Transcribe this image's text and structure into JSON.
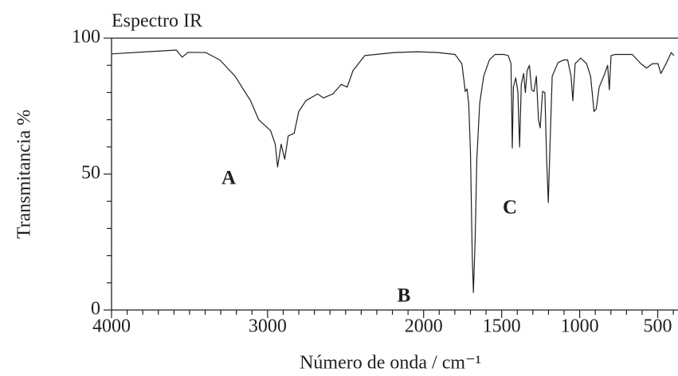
{
  "chart_data": {
    "type": "line",
    "title": "Espectro IR",
    "xlabel": "Número de onda / cm⁻¹",
    "ylabel": "Transmitancia %",
    "annotations": [
      "A",
      "B",
      "C"
    ],
    "xlim": [
      4000,
      370
    ],
    "ylim": [
      0,
      100
    ],
    "xticks": [
      4000,
      3000,
      2000,
      1500,
      1000,
      500
    ],
    "xminorticks": [
      3900,
      3800,
      3700,
      3600,
      3500,
      3400,
      3300,
      3200,
      3100,
      2900,
      2800,
      2700,
      2600,
      2500,
      2400,
      2300,
      2200,
      2100,
      1900,
      1800,
      1700,
      1600,
      1400,
      1300,
      1200,
      1100,
      900,
      800,
      700,
      600,
      400
    ],
    "yticks": [
      0,
      50,
      100
    ],
    "yminorticks": [
      10,
      20,
      30,
      40,
      60,
      70,
      80,
      90
    ],
    "series": [
      {
        "color": "#231f20",
        "x": [
          4000,
          3774,
          3585,
          3547,
          3510,
          3396,
          3306,
          3208,
          3109,
          3057,
          2981,
          2951,
          2936,
          2913,
          2890,
          2868,
          2830,
          2800,
          2755,
          2679,
          2642,
          2581,
          2528,
          2490,
          2453,
          2377,
          2189,
          2038,
          1908,
          1799,
          1755,
          1733,
          1722,
          1711,
          1700,
          1689,
          1681,
          1670,
          1659,
          1641,
          1615,
          1579,
          1542,
          1487,
          1458,
          1440,
          1432,
          1425,
          1410,
          1396,
          1385,
          1374,
          1359,
          1348,
          1337,
          1322,
          1308,
          1293,
          1278,
          1264,
          1253,
          1238,
          1223,
          1212,
          1201,
          1190,
          1176,
          1139,
          1103,
          1077,
          1055,
          1044,
          1029,
          993,
          956,
          930,
          908,
          894,
          875,
          846,
          821,
          810,
          799,
          773,
          663,
          608,
          571,
          535,
          498,
          480,
          443,
          414,
          396
        ],
        "values": [
          94.2,
          95,
          95.6,
          93,
          94.8,
          94.7,
          92,
          86,
          77,
          70,
          66,
          61,
          52.6,
          61,
          55.5,
          64,
          65,
          73,
          77,
          79.5,
          78,
          79.5,
          83,
          82,
          88,
          93.6,
          94.7,
          95,
          94.7,
          94,
          90.6,
          80.4,
          81.3,
          76,
          58.5,
          20.5,
          6.4,
          26,
          55.6,
          76,
          86,
          92,
          94,
          94,
          93.6,
          90.6,
          59.6,
          82,
          85.4,
          80.4,
          60,
          83,
          87,
          80,
          88,
          90,
          81,
          80.4,
          86,
          70,
          67,
          80.4,
          80,
          55.6,
          39.5,
          61,
          86,
          91,
          92,
          92,
          86,
          77,
          90.6,
          92.7,
          90.6,
          86,
          73,
          74,
          82,
          86,
          90,
          81,
          93.6,
          94,
          94,
          90.6,
          89,
          90.6,
          90.6,
          87,
          91,
          94.7,
          93.6
        ]
      }
    ]
  }
}
